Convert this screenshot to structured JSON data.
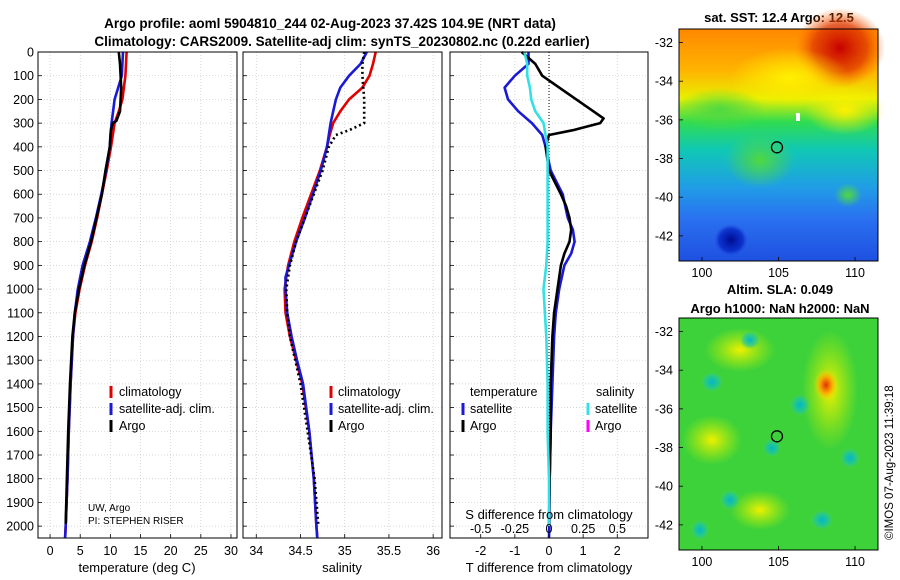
{
  "header": {
    "title_line1": "Argo profile: aoml 5904810_244 02-Aug-2023 37.42S 104.9E (NRT data)",
    "title_line2": "Climatology: CARS2009. Satellite-adj clim: synTS_20230802.nc (0.22d earlier)"
  },
  "colors": {
    "climatology": "#e00000",
    "satellite": "#1a1ad6",
    "argo": "#000000",
    "satellite_salinity": "#33e0e6",
    "argo_salinity": "#ff00ff",
    "grid": "#c8c8c8"
  },
  "chart_data": [
    {
      "type": "line",
      "title": "",
      "xlabel": "temperature (deg C)",
      "ylabel": "",
      "xlim": [
        -2,
        31
      ],
      "ylim": [
        2050,
        0
      ],
      "x_ticks": [
        "0",
        "5",
        "10",
        "15",
        "20",
        "25",
        "30"
      ],
      "y_ticks": [
        "0",
        "100",
        "200",
        "300",
        "400",
        "500",
        "600",
        "700",
        "800",
        "900",
        "1000",
        "1100",
        "1200",
        "1300",
        "1400",
        "1500",
        "1600",
        "1700",
        "1800",
        "1900",
        "2000"
      ],
      "legend": [
        "climatology",
        "satellite-adj. clim.",
        "Argo"
      ],
      "annotation_1": "UW, Argo",
      "annotation_2": "PI: STEPHEN RISER",
      "series": [
        {
          "name": "climatology",
          "depth": [
            0,
            100,
            200,
            250,
            300,
            400,
            500,
            600,
            700,
            800,
            900,
            1000,
            1100,
            1200,
            1400,
            1600,
            1800,
            2000,
            2050
          ],
          "values": [
            12.7,
            12.5,
            12.0,
            11.4,
            10.7,
            10.1,
            9.4,
            8.6,
            7.8,
            6.9,
            5.8,
            4.9,
            4.2,
            3.8,
            3.4,
            3.1,
            2.9,
            2.6,
            2.5
          ]
        },
        {
          "name": "satellite-adj. clim.",
          "depth": [
            0,
            100,
            150,
            200,
            300,
            350,
            400,
            500,
            600,
            700,
            800,
            900,
            1000,
            1100,
            1200,
            1400,
            1600,
            1800,
            2000,
            2050
          ],
          "values": [
            12.1,
            11.9,
            11.3,
            10.7,
            10.2,
            10.0,
            9.9,
            9.3,
            8.5,
            7.6,
            6.6,
            5.4,
            4.6,
            4.1,
            3.8,
            3.4,
            3.1,
            2.9,
            2.6,
            2.5
          ]
        },
        {
          "name": "Argo",
          "depth": [
            0,
            50,
            100,
            150,
            200,
            250,
            290,
            300,
            330,
            400,
            500,
            600,
            700,
            800,
            900,
            1000,
            1100,
            1200,
            1400,
            1600,
            1800,
            1990
          ],
          "values": [
            11.4,
            11.6,
            11.7,
            11.8,
            11.7,
            11.6,
            11.0,
            10.4,
            10.1,
            9.9,
            9.2,
            8.6,
            7.7,
            6.8,
            5.7,
            4.8,
            4.1,
            3.7,
            3.3,
            3.0,
            2.8,
            2.6
          ]
        }
      ]
    },
    {
      "type": "line",
      "title": "",
      "xlabel": "salinity",
      "ylabel": "",
      "xlim": [
        33.85,
        36.1
      ],
      "ylim": [
        2050,
        0
      ],
      "x_ticks": [
        "34",
        "34.5",
        "35",
        "35.5",
        "36"
      ],
      "legend": [
        "climatology",
        "satellite-adj. clim.",
        "Argo"
      ],
      "series": [
        {
          "name": "climatology",
          "depth": [
            0,
            50,
            100,
            150,
            200,
            250,
            300,
            350,
            400,
            500,
            600,
            700,
            800,
            900,
            1000,
            1100,
            1200,
            1300,
            1400,
            1600,
            1800,
            2000,
            2050
          ],
          "values": [
            35.35,
            35.32,
            35.28,
            35.2,
            35.05,
            34.95,
            34.87,
            34.83,
            34.8,
            34.72,
            34.62,
            34.52,
            34.43,
            34.36,
            34.32,
            34.33,
            34.38,
            34.45,
            34.52,
            34.6,
            34.65,
            34.68,
            34.69
          ]
        },
        {
          "name": "satellite-adj. clim.",
          "depth": [
            0,
            50,
            100,
            150,
            200,
            250,
            300,
            350,
            400,
            500,
            600,
            700,
            800,
            900,
            950,
            1000,
            1100,
            1200,
            1300,
            1400,
            1600,
            1800,
            2000,
            2050
          ],
          "values": [
            35.25,
            35.18,
            35.05,
            34.95,
            34.9,
            34.87,
            34.84,
            34.82,
            34.8,
            34.73,
            34.64,
            34.55,
            34.45,
            34.37,
            34.33,
            34.33,
            34.35,
            34.4,
            34.46,
            34.53,
            34.6,
            34.65,
            34.68,
            34.69
          ]
        },
        {
          "name": "Argo",
          "depth": [
            0,
            50,
            100,
            150,
            200,
            250,
            300,
            330,
            350,
            400,
            500,
            600,
            700,
            800,
            900,
            1000,
            1100,
            1200,
            1400,
            1600,
            1800,
            1990
          ],
          "values": [
            35.22,
            35.2,
            35.2,
            35.21,
            35.22,
            35.22,
            35.22,
            35.05,
            34.9,
            34.82,
            34.75,
            34.65,
            34.55,
            34.45,
            34.38,
            34.34,
            34.35,
            34.38,
            34.5,
            34.58,
            34.66,
            34.7
          ]
        }
      ]
    },
    {
      "type": "line",
      "title": "",
      "xlabel": "T difference from climatology",
      "x2label": "S difference from climatology",
      "ylabel": "",
      "xlim": [
        -2.9,
        2.9
      ],
      "x2lim": [
        -0.725,
        0.725
      ],
      "ylim": [
        2050,
        0
      ],
      "x_ticks": [
        "-2",
        "-1",
        "0",
        "1",
        "2"
      ],
      "x2_ticks": [
        "-0.5",
        "-0.25",
        "0",
        "0.25",
        "0.5"
      ],
      "legend_temperature": "temperature",
      "legend_salinity": "salinity",
      "legend_satellite": "satellite",
      "legend_argo": "Argo",
      "series": [
        {
          "name": "temperature satellite",
          "depth": [
            0,
            50,
            100,
            150,
            200,
            250,
            300,
            350,
            400,
            500,
            600,
            700,
            750,
            800,
            850,
            900,
            1000,
            1100,
            1200,
            1400,
            1600,
            1800,
            2000,
            2050
          ],
          "values": [
            -0.6,
            -0.6,
            -1.0,
            -1.3,
            -1.2,
            -0.9,
            -0.5,
            -0.2,
            -0.1,
            0.05,
            0.4,
            0.55,
            0.7,
            0.75,
            0.65,
            0.45,
            0.3,
            0.2,
            0.15,
            0.1,
            0.05,
            0.02,
            0.01,
            0.0
          ]
        },
        {
          "name": "temperature Argo",
          "depth": [
            0,
            50,
            100,
            150,
            200,
            250,
            280,
            300,
            330,
            350,
            400,
            500,
            600,
            650,
            700,
            750,
            800,
            850,
            900,
            950,
            1000,
            1100,
            1200,
            1400,
            1600,
            1800,
            2000
          ],
          "values": [
            -0.8,
            -0.4,
            -0.2,
            0.3,
            0.8,
            1.3,
            1.6,
            1.5,
            0.7,
            0.0,
            -0.1,
            0.0,
            0.35,
            0.5,
            0.6,
            0.65,
            0.6,
            0.45,
            0.35,
            0.3,
            0.25,
            0.15,
            0.1,
            0.05,
            0.05,
            0.02,
            0.0
          ]
        },
        {
          "name": "salinity satellite",
          "depth": [
            0,
            50,
            100,
            150,
            200,
            250,
            300,
            400,
            500,
            600,
            700,
            800,
            900,
            950,
            1000,
            1100,
            1200,
            1400,
            1600,
            1800,
            2000
          ],
          "values": [
            -0.18,
            -0.16,
            -0.16,
            -0.14,
            -0.13,
            -0.1,
            -0.04,
            -0.01,
            -0.01,
            -0.01,
            -0.01,
            -0.01,
            -0.02,
            -0.03,
            -0.04,
            -0.03,
            -0.02,
            -0.01,
            -0.01,
            0.0,
            0.0
          ]
        },
        {
          "name": "salinity Argo",
          "depth": [],
          "values": []
        }
      ]
    },
    {
      "type": "heatmap",
      "title": "sat. SST: 12.4 Argo: 12.5",
      "x_ticks": [
        "100",
        "105",
        "110"
      ],
      "y_ticks": [
        "-32",
        "-34",
        "-36",
        "-38",
        "-40",
        "-42"
      ],
      "xlim": [
        98.5,
        111.5
      ],
      "ylim": [
        -43.3,
        -31.3
      ],
      "marker": {
        "lon": 104.9,
        "lat": -37.42
      }
    },
    {
      "type": "heatmap",
      "title": "Altim. SLA: 0.049",
      "subtitle": "Argo h1000: NaN h2000: NaN",
      "x_ticks": [
        "100",
        "105",
        "110"
      ],
      "y_ticks": [
        "-32",
        "-34",
        "-36",
        "-38",
        "-40",
        "-42"
      ],
      "xlim": [
        98.5,
        111.5
      ],
      "ylim": [
        -43.3,
        -31.3
      ],
      "marker": {
        "lon": 104.9,
        "lat": -37.42
      }
    }
  ],
  "footer": {
    "credit": "©IMOS 07-Aug-2023 11:39:18"
  }
}
